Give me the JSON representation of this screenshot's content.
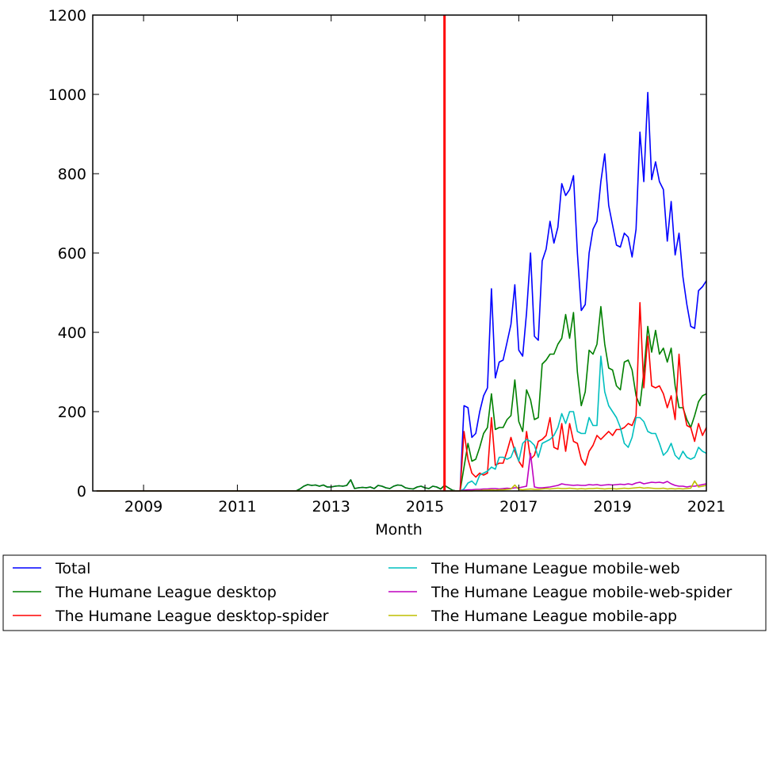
{
  "chart_data": {
    "type": "line",
    "title": "",
    "xlabel": "Month",
    "ylabel": "",
    "xlim": [
      "2007-12",
      "2021-01"
    ],
    "ylim": [
      0,
      1200
    ],
    "yticks": [
      0,
      200,
      400,
      600,
      800,
      1000,
      1200
    ],
    "xticks": [
      "2009",
      "2011",
      "2013",
      "2015",
      "2017",
      "2019",
      "2021"
    ],
    "grid": false,
    "legend_placement": "below",
    "vertical_marker": {
      "x": "2015-06",
      "color": "#ff0000"
    },
    "series": [
      {
        "name": "Total",
        "color": "#0000ff",
        "start": "2008-01",
        "values": [
          0,
          0,
          0,
          0,
          0,
          0,
          0,
          0,
          0,
          0,
          0,
          0,
          0,
          0,
          0,
          0,
          0,
          0,
          0,
          0,
          0,
          0,
          0,
          0,
          0,
          0,
          0,
          0,
          0,
          0,
          0,
          0,
          0,
          0,
          0,
          0,
          0,
          0,
          0,
          0,
          0,
          0,
          0,
          0,
          0,
          0,
          0,
          0,
          0,
          0,
          0,
          0,
          5,
          12,
          16,
          14,
          15,
          12,
          15,
          10,
          10,
          12,
          13,
          12,
          14,
          28,
          6,
          8,
          9,
          8,
          10,
          6,
          14,
          12,
          8,
          6,
          12,
          15,
          14,
          8,
          6,
          5,
          10,
          12,
          8,
          6,
          12,
          10,
          5,
          14,
          8,
          2,
          0,
          0,
          215,
          210,
          135,
          145,
          200,
          240,
          260,
          510,
          285,
          325,
          330,
          375,
          420,
          520,
          355,
          340,
          450,
          600,
          390,
          380,
          580,
          610,
          680,
          625,
          665,
          775,
          745,
          760,
          795,
          600,
          455,
          470,
          600,
          660,
          680,
          780,
          850,
          720,
          670,
          620,
          615,
          650,
          640,
          590,
          660,
          905,
          780,
          1005,
          785,
          830,
          780,
          760,
          630,
          730,
          595,
          650,
          540,
          470,
          415,
          410,
          505,
          515,
          530
        ]
      },
      {
        "name": "The Humane League desktop",
        "color": "#008000",
        "start": "2008-01",
        "values": [
          0,
          0,
          0,
          0,
          0,
          0,
          0,
          0,
          0,
          0,
          0,
          0,
          0,
          0,
          0,
          0,
          0,
          0,
          0,
          0,
          0,
          0,
          0,
          0,
          0,
          0,
          0,
          0,
          0,
          0,
          0,
          0,
          0,
          0,
          0,
          0,
          0,
          0,
          0,
          0,
          0,
          0,
          0,
          0,
          0,
          0,
          0,
          0,
          0,
          0,
          0,
          0,
          5,
          12,
          16,
          14,
          15,
          12,
          15,
          10,
          10,
          12,
          13,
          12,
          14,
          28,
          6,
          8,
          9,
          8,
          10,
          6,
          14,
          12,
          8,
          6,
          12,
          15,
          14,
          8,
          6,
          5,
          10,
          12,
          8,
          6,
          12,
          10,
          5,
          14,
          8,
          2,
          0,
          0,
          60,
          120,
          75,
          80,
          110,
          145,
          160,
          245,
          155,
          160,
          160,
          180,
          190,
          280,
          175,
          150,
          255,
          230,
          180,
          185,
          320,
          330,
          345,
          345,
          370,
          385,
          445,
          385,
          450,
          300,
          215,
          250,
          355,
          345,
          370,
          465,
          370,
          310,
          305,
          265,
          255,
          325,
          330,
          305,
          240,
          215,
          300,
          415,
          350,
          405,
          345,
          360,
          325,
          360,
          265,
          210,
          210,
          180,
          160,
          190,
          225,
          240,
          245
        ]
      },
      {
        "name": "The Humane League desktop-spider",
        "color": "#ff0000",
        "start": "2015-11",
        "values": [
          150,
          80,
          45,
          35,
          45,
          40,
          45,
          185,
          65,
          70,
          70,
          100,
          135,
          100,
          75,
          60,
          150,
          80,
          90,
          125,
          130,
          140,
          185,
          110,
          105,
          170,
          100,
          170,
          125,
          120,
          80,
          65,
          100,
          115,
          140,
          130,
          140,
          150,
          140,
          155,
          155,
          160,
          170,
          165,
          190,
          475,
          260,
          390,
          265,
          260,
          265,
          245,
          210,
          240,
          180,
          345,
          215,
          165,
          160,
          125,
          170,
          140,
          160
        ]
      },
      {
        "name": "The Humane League mobile-web",
        "color": "#00bfbf",
        "start": "2015-11",
        "values": [
          5,
          20,
          25,
          15,
          40,
          45,
          50,
          60,
          55,
          85,
          85,
          80,
          85,
          110,
          75,
          120,
          130,
          125,
          115,
          85,
          120,
          125,
          130,
          140,
          160,
          195,
          170,
          200,
          200,
          150,
          145,
          145,
          185,
          165,
          165,
          340,
          250,
          215,
          200,
          185,
          160,
          120,
          110,
          135,
          185,
          185,
          175,
          150,
          145,
          145,
          120,
          90,
          100,
          120,
          90,
          80,
          100,
          85,
          80,
          85,
          110,
          100,
          95
        ]
      },
      {
        "name": "The Humane League mobile-web-spider",
        "color": "#bf00bf",
        "start": "2015-11",
        "values": [
          2,
          3,
          3,
          4,
          4,
          5,
          5,
          6,
          6,
          5,
          6,
          7,
          6,
          8,
          8,
          10,
          12,
          95,
          10,
          8,
          8,
          9,
          10,
          12,
          14,
          18,
          16,
          15,
          14,
          15,
          14,
          14,
          16,
          15,
          16,
          14,
          15,
          16,
          15,
          16,
          17,
          16,
          18,
          16,
          20,
          22,
          18,
          20,
          22,
          21,
          22,
          20,
          24,
          18,
          14,
          12,
          12,
          10,
          12,
          12,
          14,
          16,
          18
        ]
      },
      {
        "name": "The Humane League mobile-app",
        "color": "#bfbf00",
        "start": "2015-11",
        "values": [
          0,
          0,
          0,
          1,
          1,
          2,
          2,
          3,
          2,
          3,
          3,
          4,
          5,
          15,
          4,
          3,
          4,
          5,
          4,
          4,
          5,
          6,
          5,
          6,
          7,
          6,
          6,
          7,
          6,
          5,
          6,
          5,
          6,
          6,
          7,
          6,
          5,
          6,
          6,
          5,
          6,
          7,
          6,
          7,
          8,
          9,
          7,
          8,
          7,
          6,
          6,
          7,
          5,
          6,
          5,
          6,
          5,
          6,
          7,
          25,
          10,
          12,
          14
        ]
      }
    ]
  }
}
